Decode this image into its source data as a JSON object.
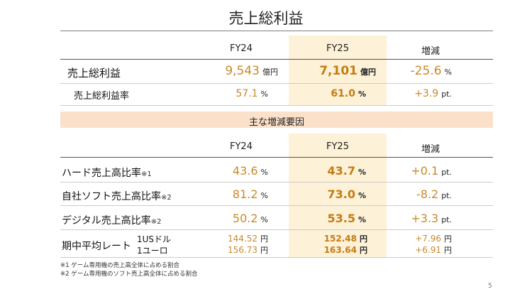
{
  "title": "売上総利益",
  "top_table": {
    "headers": {
      "fy24": "FY24",
      "fy25": "FY25",
      "change": "増減"
    },
    "rows": [
      {
        "label": "売上総利益",
        "fy24": "9,543",
        "fy24_unit": "億円",
        "fy25": "7,101",
        "fy25_unit": "億円",
        "change": "-25.6",
        "change_unit": "%"
      },
      {
        "label": "売上総利益率",
        "fy24": "57.1",
        "fy24_unit": "%",
        "fy25": "61.0",
        "fy25_unit": "%",
        "change": "+3.9",
        "change_unit": "pt."
      }
    ]
  },
  "factors": {
    "band_title": "主な増減要因",
    "headers": {
      "fy24": "FY24",
      "fy25": "FY25",
      "change": "増減"
    },
    "rows": [
      {
        "label": "ハード売上高比率",
        "note": "※1",
        "fy24": "43.6",
        "fy24_unit": "%",
        "fy25": "43.7",
        "fy25_unit": "%",
        "change": "+0.1",
        "change_unit": "pt."
      },
      {
        "label": "自社ソフト売上高比率",
        "note": "※2",
        "fy24": "81.2",
        "fy24_unit": "%",
        "fy25": "73.0",
        "fy25_unit": "%",
        "change": "-8.2",
        "change_unit": "pt."
      },
      {
        "label": "デジタル売上高比率",
        "note": "※2",
        "fy24": "50.2",
        "fy24_unit": "%",
        "fy25": "53.5",
        "fy25_unit": "%",
        "change": "+3.3",
        "change_unit": "pt."
      }
    ],
    "fx": {
      "label": "期中平均レート",
      "rows": [
        {
          "currency": "1USドル",
          "fy24": "144.52",
          "fy25": "152.48",
          "change": "+7.96",
          "unit": "円"
        },
        {
          "currency": "1ユーロ",
          "fy24": "156.73",
          "fy25": "163.64",
          "change": "+6.91",
          "unit": "円"
        }
      ]
    }
  },
  "footnotes": [
    "※1 ゲーム専用機の売上高全体に占める割合",
    "※2 ゲーム専用機のソフト売上高全体に占める割合"
  ],
  "page_number": "5"
}
